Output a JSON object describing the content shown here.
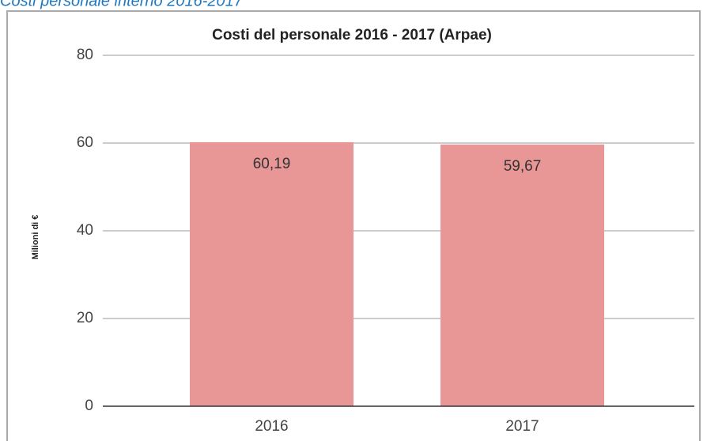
{
  "caption": "Costi personale interno 2016-2017",
  "chart_data": {
    "type": "bar",
    "title": "Costi del personale 2016 - 2017 (Arpae)",
    "y_label": "Milioni di €",
    "categories": [
      "2016",
      "2017"
    ],
    "values": [
      60.19,
      59.67
    ],
    "value_labels": [
      "60,19",
      "59,67"
    ],
    "color": "#e99696",
    "ylim": [
      0,
      80
    ],
    "yticks": [
      0,
      20,
      40,
      60,
      80
    ],
    "grid": true
  }
}
